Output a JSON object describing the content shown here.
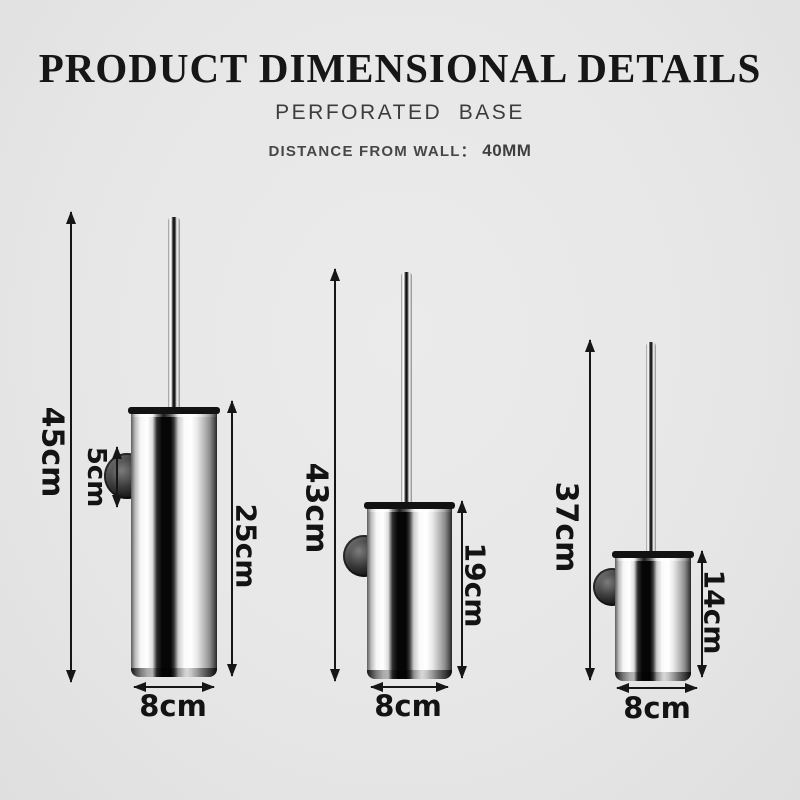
{
  "header": {
    "title": "PRODUCT DIMENSIONAL DETAILS",
    "subtitle": "PERFORATED  BASE",
    "wall_label": "DISTANCE FROM WALL：",
    "wall_value": "40MM"
  },
  "products": [
    {
      "size": "large",
      "total_height": "45cm",
      "mount_height": "5cm",
      "cup_height": "25cm",
      "cup_width": "8cm"
    },
    {
      "size": "medium",
      "total_height": "43cm",
      "cup_height": "19cm",
      "cup_width": "8cm"
    },
    {
      "size": "small",
      "total_height": "37cm",
      "cup_height": "14cm",
      "cup_width": "8cm"
    }
  ],
  "colors": {
    "background": "#e7e7e7",
    "ink": "#161616",
    "chrome_highlight": "#ffffff",
    "chrome_shadow": "#060606"
  }
}
